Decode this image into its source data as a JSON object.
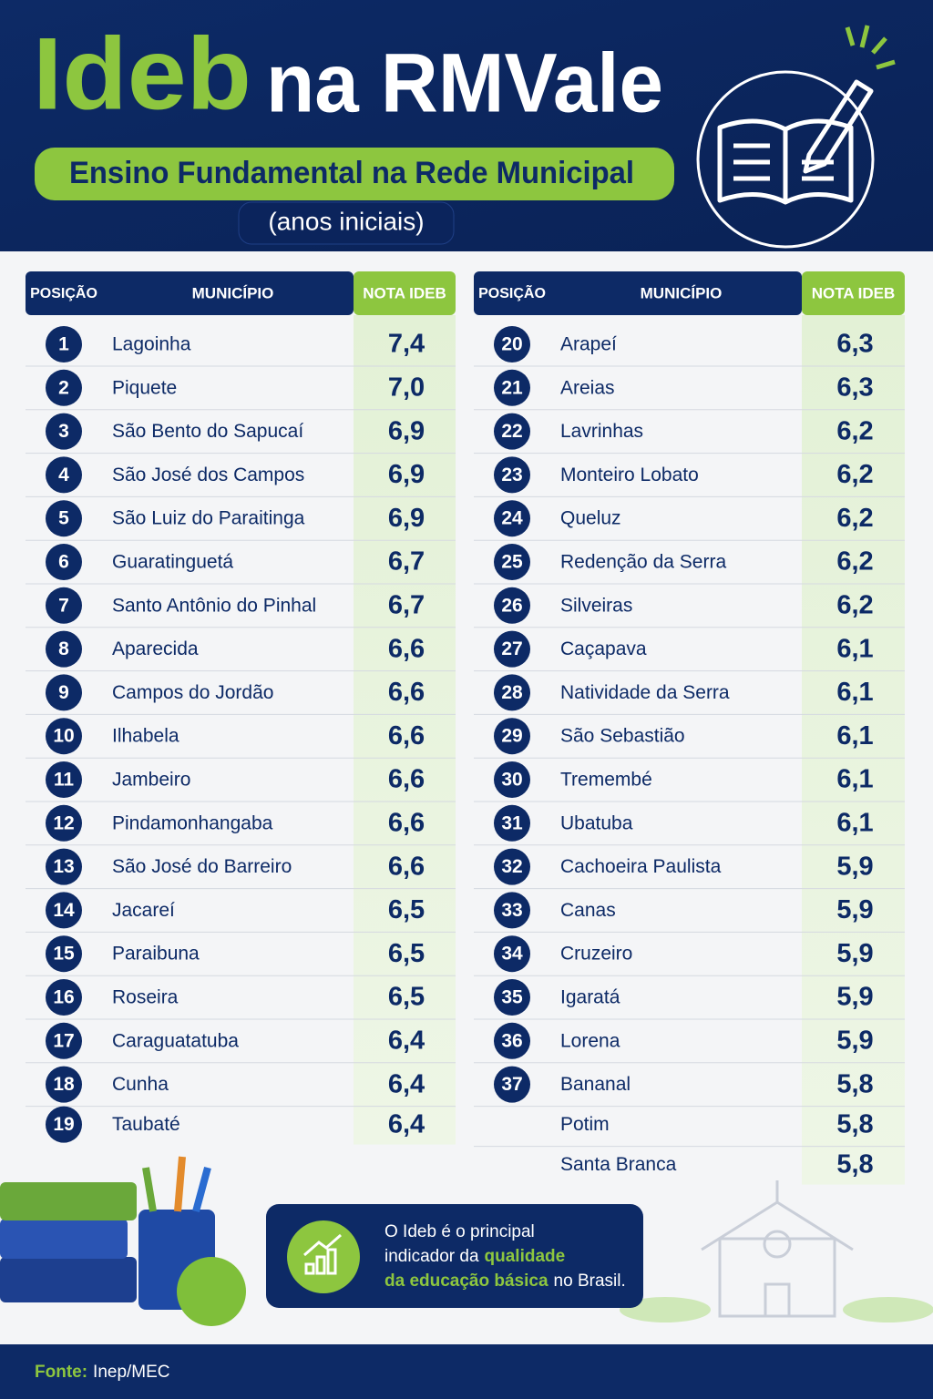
{
  "header": {
    "title_accent": "Ideb",
    "title_rest": "na RMVale",
    "subtitle": "Ensino Fundamental na Rede Municipal",
    "subtitle_detail": "(anos iniciais)"
  },
  "table_header": {
    "position": "POSIÇÃO",
    "municipality": "MUNICÍPIO",
    "score": "NOTA IDEB"
  },
  "tables": [
    {
      "rows": [
        [
          "1",
          "Lagoinha",
          "7,4"
        ],
        [
          "2",
          "Piquete",
          "7,0"
        ],
        [
          "3",
          "São Bento do Sapucaí",
          "6,9"
        ],
        [
          "4",
          "São José dos Campos",
          "6,9"
        ],
        [
          "5",
          "São Luiz do Paraitinga",
          "6,9"
        ],
        [
          "6",
          "Guaratinguetá",
          "6,7"
        ],
        [
          "7",
          "Santo Antônio do Pinhal",
          "6,7"
        ],
        [
          "8",
          "Aparecida",
          "6,6"
        ],
        [
          "9",
          "Campos do Jordão",
          "6,6"
        ],
        [
          "10",
          "Ilhabela",
          "6,6"
        ],
        [
          "11",
          "Jambeiro",
          "6,6"
        ],
        [
          "12",
          "Pindamonhangaba",
          "6,6"
        ],
        [
          "13",
          "São José do Barreiro",
          "6,6"
        ],
        [
          "14",
          "Jacareí",
          "6,5"
        ],
        [
          "15",
          "Paraibuna",
          "6,5"
        ],
        [
          "16",
          "Roseira",
          "6,5"
        ],
        [
          "17",
          "Caraguatatuba",
          "6,4"
        ],
        [
          "18",
          "Cunha",
          "6,4"
        ],
        [
          "19",
          "Taubaté",
          "6,4"
        ]
      ]
    },
    {
      "rows": [
        [
          "20",
          "Arapeí",
          "6,3"
        ],
        [
          "21",
          "Areias",
          "6,3"
        ],
        [
          "22",
          "Lavrinhas",
          "6,2"
        ],
        [
          "23",
          "Monteiro Lobato",
          "6,2"
        ],
        [
          "24",
          "Queluz",
          "6,2"
        ],
        [
          "25",
          "Redenção da Serra",
          "6,2"
        ],
        [
          "26",
          "Silveiras",
          "6,2"
        ],
        [
          "27",
          "Caçapava",
          "6,1"
        ],
        [
          "28",
          "Natividade da Serra",
          "6,1"
        ],
        [
          "29",
          "São Sebastião",
          "6,1"
        ],
        [
          "30",
          "Tremembé",
          "6,1"
        ],
        [
          "31",
          "Ubatuba",
          "6,1"
        ],
        [
          "32",
          "Cachoeira Paulista",
          "5,9"
        ],
        [
          "33",
          "Canas",
          "5,9"
        ],
        [
          "34",
          "Cruzeiro",
          "5,9"
        ],
        [
          "35",
          "Igaratá",
          "5,9"
        ],
        [
          "36",
          "Lorena",
          "5,9"
        ],
        [
          "37",
          "Bananal",
          "5,8"
        ],
        [
          null,
          "Potim",
          "5,8"
        ],
        [
          null,
          "Santa Branca",
          "5,8"
        ]
      ]
    }
  ],
  "note": {
    "line1": "O Ideb é o principal",
    "line2": "indicador da",
    "line2_highlight": "qualidade",
    "line3_highlight": "da educação básica",
    "line3": "no Brasil."
  },
  "footer": {
    "label": "Fonte:",
    "source": "Inep/MEC"
  }
}
